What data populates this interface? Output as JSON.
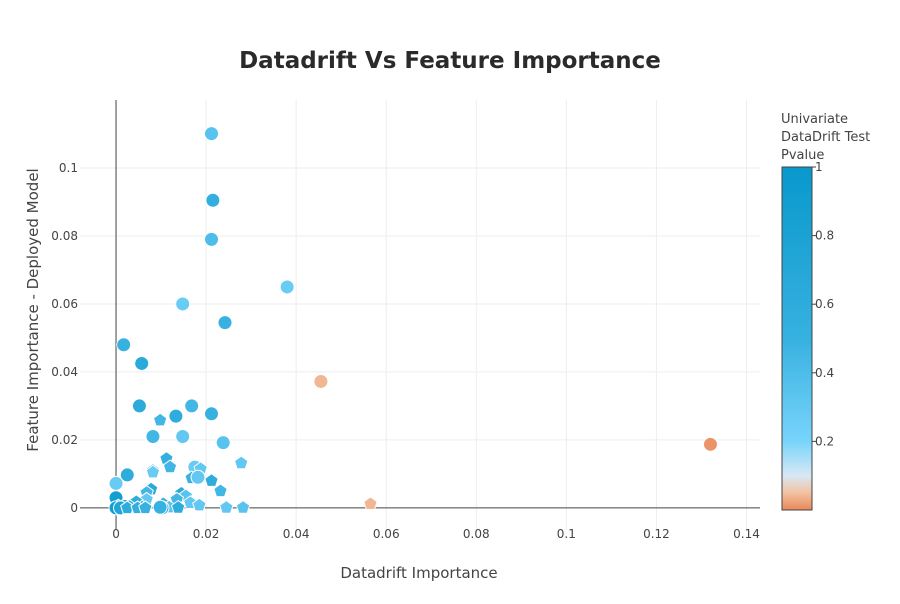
{
  "chart_data": {
    "type": "scatter",
    "title": "Datadrift Vs Feature Importance",
    "xlabel": "Datadrift Importance",
    "ylabel": "Feature Importance - Deployed Model",
    "xlim": [
      -0.008,
      0.143
    ],
    "ylim": [
      -0.0065,
      0.12
    ],
    "x_ticks": [
      0,
      0.02,
      0.04,
      0.06,
      0.08,
      0.1,
      0.12,
      0.14
    ],
    "x_tick_labels": [
      "0",
      "0.02",
      "0.04",
      "0.06",
      "0.08",
      "0.1",
      "0.12",
      "0.14"
    ],
    "y_ticks": [
      0,
      0.02,
      0.04,
      0.06,
      0.08,
      0.1
    ],
    "y_tick_labels": [
      "0",
      "0.02",
      "0.04",
      "0.06",
      "0.08",
      "0.1"
    ],
    "grid": true,
    "colorbar": {
      "title_lines": [
        "Univariate",
        "DataDrift Test",
        "Pvalue"
      ],
      "range": [
        0,
        1
      ],
      "ticks": [
        1,
        0.8,
        0.6,
        0.4,
        0.2
      ],
      "tick_labels": [
        "1",
        "0.8",
        "0.6",
        "0.4",
        "0.2"
      ],
      "colors": [
        {
          "stop": 0,
          "color": "#e8895a"
        },
        {
          "stop": 0.05,
          "color": "#f3c1a0"
        },
        {
          "stop": 0.1,
          "color": "#d8e8f5"
        },
        {
          "stop": 0.2,
          "color": "#78d4fb"
        },
        {
          "stop": 0.5,
          "color": "#37b1e0"
        },
        {
          "stop": 1,
          "color": "#0899cc"
        }
      ]
    },
    "points": [
      {
        "x": 0.0212,
        "y": 0.1101,
        "p": 0.35,
        "marker": "circle"
      },
      {
        "x": 0.0215,
        "y": 0.0905,
        "p": 0.55,
        "marker": "circle"
      },
      {
        "x": 0.0212,
        "y": 0.079,
        "p": 0.4,
        "marker": "circle"
      },
      {
        "x": 0.038,
        "y": 0.065,
        "p": 0.27,
        "marker": "circle"
      },
      {
        "x": 0.0148,
        "y": 0.06,
        "p": 0.27,
        "marker": "circle"
      },
      {
        "x": 0.0242,
        "y": 0.0545,
        "p": 0.5,
        "marker": "circle"
      },
      {
        "x": 0.0017,
        "y": 0.048,
        "p": 0.5,
        "marker": "circle"
      },
      {
        "x": 0.0057,
        "y": 0.0425,
        "p": 0.65,
        "marker": "circle"
      },
      {
        "x": 0.0455,
        "y": 0.0372,
        "p": 0.04,
        "marker": "circle"
      },
      {
        "x": 0.0052,
        "y": 0.03,
        "p": 0.62,
        "marker": "circle"
      },
      {
        "x": 0.0168,
        "y": 0.03,
        "p": 0.45,
        "marker": "circle"
      },
      {
        "x": 0.0212,
        "y": 0.0277,
        "p": 0.5,
        "marker": "circle"
      },
      {
        "x": 0.0133,
        "y": 0.027,
        "p": 0.6,
        "marker": "circle"
      },
      {
        "x": 0.0098,
        "y": 0.0258,
        "p": 0.45,
        "marker": "pentagon"
      },
      {
        "x": 0.0082,
        "y": 0.021,
        "p": 0.45,
        "marker": "circle"
      },
      {
        "x": 0.0148,
        "y": 0.021,
        "p": 0.3,
        "marker": "circle"
      },
      {
        "x": 0.0238,
        "y": 0.0192,
        "p": 0.35,
        "marker": "circle"
      },
      {
        "x": 0.132,
        "y": 0.0187,
        "p": 0.01,
        "marker": "circle"
      },
      {
        "x": 0.0112,
        "y": 0.0145,
        "p": 0.55,
        "marker": "pentagon"
      },
      {
        "x": 0.0278,
        "y": 0.0132,
        "p": 0.3,
        "marker": "pentagon"
      },
      {
        "x": 0.012,
        "y": 0.012,
        "p": 0.45,
        "marker": "pentagon"
      },
      {
        "x": 0.0175,
        "y": 0.012,
        "p": 0.28,
        "marker": "circle"
      },
      {
        "x": 0.0188,
        "y": 0.0115,
        "p": 0.3,
        "marker": "pentagon"
      },
      {
        "x": 0.0082,
        "y": 0.011,
        "p": 0.35,
        "marker": "pentagon"
      },
      {
        "x": 0.0082,
        "y": 0.0105,
        "p": 0.28,
        "marker": "pentagon"
      },
      {
        "x": 0.0025,
        "y": 0.0097,
        "p": 0.6,
        "marker": "circle"
      },
      {
        "x": 0.0168,
        "y": 0.0088,
        "p": 0.5,
        "marker": "pentagon"
      },
      {
        "x": 0.0182,
        "y": 0.009,
        "p": 0.3,
        "marker": "circle"
      },
      {
        "x": 0.0212,
        "y": 0.008,
        "p": 0.6,
        "marker": "pentagon"
      },
      {
        "x": 0.0,
        "y": 0.0072,
        "p": 0.28,
        "marker": "circle"
      },
      {
        "x": 0.0078,
        "y": 0.0055,
        "p": 0.65,
        "marker": "pentagon"
      },
      {
        "x": 0.0232,
        "y": 0.005,
        "p": 0.45,
        "marker": "pentagon"
      },
      {
        "x": 0.0068,
        "y": 0.0045,
        "p": 0.45,
        "marker": "pentagon"
      },
      {
        "x": 0.0145,
        "y": 0.0043,
        "p": 0.65,
        "marker": "pentagon"
      },
      {
        "x": 0.0155,
        "y": 0.0035,
        "p": 0.35,
        "marker": "pentagon"
      },
      {
        "x": 0.0,
        "y": 0.003,
        "p": 0.9,
        "marker": "circle"
      },
      {
        "x": 0.0068,
        "y": 0.0025,
        "p": 0.3,
        "marker": "pentagon"
      },
      {
        "x": 0.0135,
        "y": 0.0025,
        "p": 0.45,
        "marker": "pentagon"
      },
      {
        "x": 0.0045,
        "y": 0.0018,
        "p": 0.6,
        "marker": "pentagon"
      },
      {
        "x": 0.0165,
        "y": 0.0015,
        "p": 0.3,
        "marker": "pentagon"
      },
      {
        "x": 0.0565,
        "y": 0.0012,
        "p": 0.04,
        "marker": "pentagon"
      },
      {
        "x": 0.0105,
        "y": 0.0012,
        "p": 0.55,
        "marker": "pentagon"
      },
      {
        "x": 0.0185,
        "y": 0.0008,
        "p": 0.3,
        "marker": "pentagon"
      },
      {
        "x": 0.0005,
        "y": 0.0005,
        "p": 0.85,
        "marker": "pentagon"
      },
      {
        "x": 0.002,
        "y": 0.0004,
        "p": 0.8,
        "marker": "circle"
      },
      {
        "x": 0.003,
        "y": 0.0004,
        "p": 0.7,
        "marker": "pentagon"
      },
      {
        "x": 0.0058,
        "y": 0.0002,
        "p": 0.7,
        "marker": "pentagon"
      },
      {
        "x": 0.0098,
        "y": 0.0003,
        "p": 0.3,
        "marker": "pentagon"
      },
      {
        "x": 0.0118,
        "y": 0.0002,
        "p": 0.35,
        "marker": "pentagon"
      },
      {
        "x": 0.0138,
        "y": 0.0001,
        "p": 0.6,
        "marker": "pentagon"
      },
      {
        "x": 0.0245,
        "y": 0.0001,
        "p": 0.3,
        "marker": "pentagon"
      },
      {
        "x": 0.0282,
        "y": 0.0001,
        "p": 0.35,
        "marker": "pentagon"
      },
      {
        "x": 0.0,
        "y": 0.0,
        "p": 0.9,
        "marker": "circle"
      },
      {
        "x": 0.001,
        "y": 0.0,
        "p": 0.75,
        "marker": "circle"
      },
      {
        "x": 0.0025,
        "y": 0.0,
        "p": 0.6,
        "marker": "pentagon"
      },
      {
        "x": 0.0048,
        "y": 0.0,
        "p": 0.55,
        "marker": "pentagon"
      },
      {
        "x": 0.0065,
        "y": 0.0,
        "p": 0.5,
        "marker": "pentagon"
      },
      {
        "x": 0.0102,
        "y": 0.0,
        "p": 0.92,
        "marker": "circle"
      },
      {
        "x": 0.0098,
        "y": 0.0002,
        "p": 0.5,
        "marker": "circle"
      }
    ]
  }
}
